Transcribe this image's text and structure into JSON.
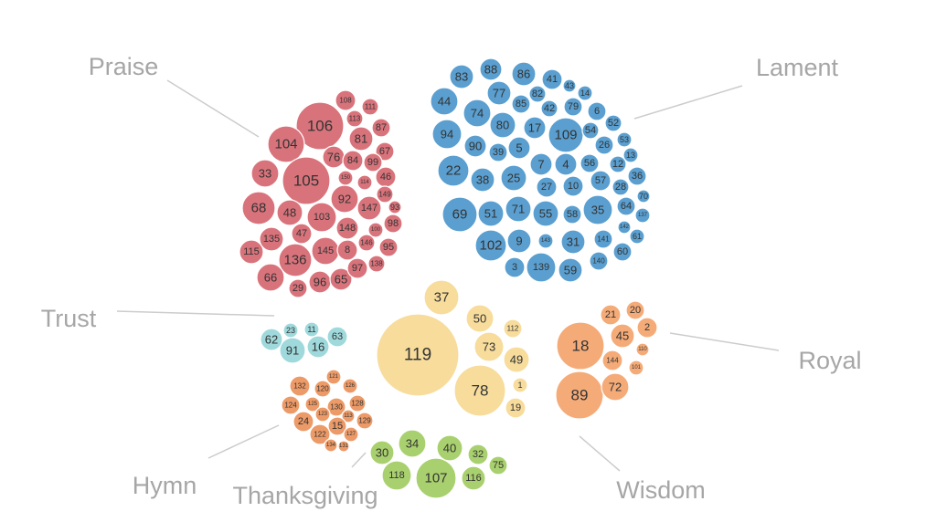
{
  "groups": [
    {
      "key": "praise",
      "name": "Praise",
      "color": "#d9737b",
      "bubbles": [
        "106",
        "104",
        "105",
        "33",
        "68",
        "48",
        "103",
        "135",
        "47",
        "136",
        "115",
        "66",
        "29",
        "96",
        "65",
        "145",
        "8",
        "97",
        "92",
        "76",
        "84",
        "81",
        "87",
        "108",
        "111",
        "113",
        "67",
        "99",
        "46",
        "150",
        "114",
        "149",
        "147",
        "93",
        "148",
        "100",
        "98",
        "146",
        "95",
        "138"
      ]
    },
    {
      "key": "lament",
      "name": "Lament",
      "color": "#5a9fd0",
      "bubbles": [
        "83",
        "88",
        "86",
        "41",
        "43",
        "77",
        "82",
        "14",
        "44",
        "74",
        "85",
        "42",
        "79",
        "6",
        "52",
        "94",
        "80",
        "17",
        "109",
        "54",
        "53",
        "90",
        "39",
        "5",
        "26",
        "13",
        "22",
        "38",
        "25",
        "7",
        "4",
        "56",
        "12",
        "36",
        "27",
        "10",
        "57",
        "28",
        "70",
        "69",
        "51",
        "71",
        "55",
        "58",
        "35",
        "64",
        "137",
        "102",
        "9",
        "143",
        "31",
        "141",
        "142",
        "61",
        "3",
        "139",
        "59",
        "140",
        "60"
      ]
    },
    {
      "key": "wisdom",
      "name": "Wisdom",
      "color": "#f7dc9b",
      "bubbles": [
        "37",
        "119",
        "50",
        "112",
        "73",
        "49",
        "78",
        "1",
        "19"
      ]
    },
    {
      "key": "royal",
      "name": "Royal",
      "color": "#f5ab78",
      "bubbles": [
        "21",
        "20",
        "2",
        "45",
        "18",
        "110",
        "144",
        "101",
        "89",
        "72"
      ]
    },
    {
      "key": "trust",
      "name": "Trust",
      "color": "#9fd9dc",
      "bubbles": [
        "23",
        "11",
        "62",
        "63",
        "91",
        "16"
      ]
    },
    {
      "key": "hymn",
      "name": "Hymn",
      "color": "#ec9a67",
      "bubbles": [
        "132",
        "121",
        "120",
        "126",
        "124",
        "125",
        "130",
        "128",
        "123",
        "113",
        "129",
        "24",
        "15",
        "122",
        "127",
        "134",
        "131"
      ]
    },
    {
      "key": "thanksgiving",
      "name": "Thanksgiving",
      "color": "#a9d06e",
      "bubbles": [
        "30",
        "34",
        "40",
        "32",
        "75",
        "118",
        "107",
        "116"
      ]
    }
  ]
}
